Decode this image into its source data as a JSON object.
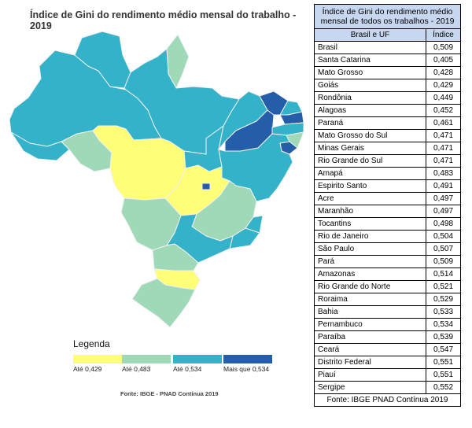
{
  "map": {
    "title": "Índice de Gini do rendimento médio mensal do trabalho - 2019",
    "source": "Fonte: IBGE - PNAD Contínua 2019",
    "legend": {
      "title": "Legenda",
      "classes": [
        {
          "label": "Até 0,429",
          "color": "#ffff77"
        },
        {
          "label": "Até 0,483",
          "color": "#9fd9b8"
        },
        {
          "label": "Até 0,534",
          "color": "#34b2c9"
        },
        {
          "label": "Mais que 0,534",
          "color": "#245ea9"
        }
      ]
    },
    "regions": [
      {
        "name": "Amazonas",
        "value": 0.514,
        "class": 2
      },
      {
        "name": "Roraima",
        "value": 0.529,
        "class": 2
      },
      {
        "name": "Amapá",
        "value": 0.483,
        "class": 1
      },
      {
        "name": "Pará",
        "value": 0.509,
        "class": 2
      },
      {
        "name": "Acre",
        "value": 0.497,
        "class": 2
      },
      {
        "name": "Rondônia",
        "value": 0.449,
        "class": 1
      },
      {
        "name": "Mato Grosso",
        "value": 0.428,
        "class": 0
      },
      {
        "name": "Tocantins",
        "value": 0.498,
        "class": 2
      },
      {
        "name": "Maranhão",
        "value": 0.497,
        "class": 2
      },
      {
        "name": "Piauí",
        "value": 0.551,
        "class": 3
      },
      {
        "name": "Ceará",
        "value": 0.547,
        "class": 3
      },
      {
        "name": "Rio Grande do Norte",
        "value": 0.521,
        "class": 2
      },
      {
        "name": "Paraíba",
        "value": 0.539,
        "class": 3
      },
      {
        "name": "Pernambuco",
        "value": 0.534,
        "class": 2
      },
      {
        "name": "Alagoas",
        "value": 0.452,
        "class": 1
      },
      {
        "name": "Sergipe",
        "value": 0.552,
        "class": 3
      },
      {
        "name": "Bahia",
        "value": 0.533,
        "class": 2
      },
      {
        "name": "Goiás",
        "value": 0.429,
        "class": 0
      },
      {
        "name": "Distrito Federal",
        "value": 0.551,
        "class": 3
      },
      {
        "name": "Minas Gerais",
        "value": 0.471,
        "class": 1
      },
      {
        "name": "Mato Grosso do Sul",
        "value": 0.471,
        "class": 1
      },
      {
        "name": "Espírito Santo",
        "value": 0.491,
        "class": 2
      },
      {
        "name": "Rio de Janeiro",
        "value": 0.504,
        "class": 2
      },
      {
        "name": "São Paulo",
        "value": 0.507,
        "class": 2
      },
      {
        "name": "Paraná",
        "value": 0.461,
        "class": 1
      },
      {
        "name": "Santa Catarina",
        "value": 0.405,
        "class": 0
      },
      {
        "name": "Rio Grande do Sul",
        "value": 0.471,
        "class": 1
      }
    ]
  },
  "table": {
    "title": "Índice de Gini do rendimento médio mensal de todos os trabalhos - 2019",
    "col_region": "Brasil e UF",
    "col_index": "Índice",
    "rows": [
      {
        "name": "Brasil",
        "value": "0,509"
      },
      {
        "name": "Santa Catarina",
        "value": "0,405"
      },
      {
        "name": "Mato Grosso",
        "value": "0,428"
      },
      {
        "name": "Goiás",
        "value": "0,429"
      },
      {
        "name": "Rondônia",
        "value": "0,449"
      },
      {
        "name": "Alagoas",
        "value": "0,452"
      },
      {
        "name": "Paraná",
        "value": "0,461"
      },
      {
        "name": "Mato Grosso do Sul",
        "value": "0,471"
      },
      {
        "name": "Minas Gerais",
        "value": "0,471"
      },
      {
        "name": "Rio Grande do Sul",
        "value": "0,471"
      },
      {
        "name": "Amapá",
        "value": "0,483"
      },
      {
        "name": "Espirito Santo",
        "value": "0,491"
      },
      {
        "name": "Acre",
        "value": "0,497"
      },
      {
        "name": "Maranhão",
        "value": "0,497"
      },
      {
        "name": "Tocantins",
        "value": "0,498"
      },
      {
        "name": "Rio de Janeiro",
        "value": "0,504"
      },
      {
        "name": "São Paulo",
        "value": "0,507"
      },
      {
        "name": "Pará",
        "value": "0,509"
      },
      {
        "name": "Amazonas",
        "value": "0,514"
      },
      {
        "name": "Rio Grande do Norte",
        "value": "0,521"
      },
      {
        "name": "Roraima",
        "value": "0,529"
      },
      {
        "name": "Bahia",
        "value": "0,533"
      },
      {
        "name": "Pernambuco",
        "value": "0,534"
      },
      {
        "name": "Paraíba",
        "value": "0,539"
      },
      {
        "name": "Ceará",
        "value": "0,547"
      },
      {
        "name": "Distrito Federal",
        "value": "0,551"
      },
      {
        "name": "Piauí",
        "value": "0,551"
      },
      {
        "name": "Sergipe",
        "value": "0,552"
      }
    ],
    "source": "Fonte: IBGE PNAD Contínua 2019"
  }
}
